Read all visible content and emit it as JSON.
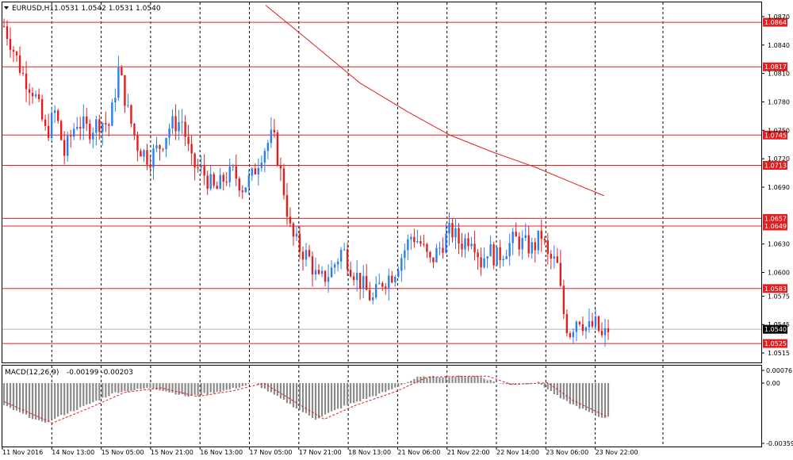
{
  "header": {
    "symbol": "EURUSD,H1",
    "ohlc": "1.0531 1.0542 1.0531 1.0540"
  },
  "macd_header": {
    "label": "MACD(12,26,9)",
    "values": "-0.00199 -0.00203"
  },
  "colors": {
    "bull": "#2a7fe8",
    "bear": "#e02020",
    "level_line": "#e02020",
    "ma_line": "#e02020",
    "grid": "#000000",
    "current_price_line": "#9fb3c8",
    "current_price_tag": "#000000",
    "macd_hist": "#8a8a8a",
    "macd_signal": "#e02020"
  },
  "chart_data": [
    {
      "type": "candlestick",
      "symbol": "EURUSD",
      "timeframe": "H1",
      "ylim": [
        1.0505,
        1.0885
      ],
      "y_tick_labels": [
        "1.0870",
        "1.0840",
        "1.0810",
        "1.0780",
        "1.0750",
        "1.0720",
        "1.0690",
        "1.0630",
        "1.0600",
        "1.0575",
        "1.0545",
        "1.0515"
      ],
      "x_tick_labels": [
        "11 Nov 2016",
        "14 Nov 13:00",
        "15 Nov 05:00",
        "15 Nov 21:00",
        "16 Nov 13:00",
        "17 Nov 05:00",
        "17 Nov 21:00",
        "18 Nov 13:00",
        "21 Nov 06:00",
        "21 Nov 22:00",
        "22 Nov 14:00",
        "23 Nov 06:00",
        "23 Nov 22:00"
      ],
      "price_levels": [
        "1.0864",
        "1.0817",
        "1.0745",
        "1.0713",
        "1.0657",
        "1.0649",
        "1.0583",
        "1.0525"
      ],
      "current_price": "1.0540",
      "moving_average": [
        {
          "x": 0.0,
          "y": 1.0882
        },
        {
          "x": 0.1,
          "y": 1.0845
        },
        {
          "x": 0.22,
          "y": 1.08
        },
        {
          "x": 0.33,
          "y": 1.077
        },
        {
          "x": 0.43,
          "y": 1.0745
        },
        {
          "x": 0.53,
          "y": 1.0727
        },
        {
          "x": 0.63,
          "y": 1.0711
        },
        {
          "x": 0.72,
          "y": 1.0694
        },
        {
          "x": 0.79,
          "y": 1.0681
        }
      ]
    },
    {
      "type": "bar",
      "indicator": "MACD(12,26,9)",
      "ylim": [
        -0.00359,
        0.00076
      ],
      "y_tick_labels": [
        "0.00076",
        "0.00",
        "-0.00359"
      ],
      "signal_line": [
        {
          "x": 0.0,
          "y": -0.0011
        },
        {
          "x": 0.08,
          "y": -0.00238
        },
        {
          "x": 0.14,
          "y": -0.0015
        },
        {
          "x": 0.2,
          "y": -0.00055
        },
        {
          "x": 0.26,
          "y": -0.00028
        },
        {
          "x": 0.32,
          "y": -0.0008
        },
        {
          "x": 0.38,
          "y": -0.00045
        },
        {
          "x": 0.43,
          "y": 0.0
        },
        {
          "x": 0.49,
          "y": -0.0013
        },
        {
          "x": 0.53,
          "y": -0.00215
        },
        {
          "x": 0.58,
          "y": -0.00135
        },
        {
          "x": 0.65,
          "y": -0.00048
        },
        {
          "x": 0.7,
          "y": 0.00035
        },
        {
          "x": 0.75,
          "y": 0.0004
        },
        {
          "x": 0.8,
          "y": 0.00042
        },
        {
          "x": 0.84,
          "y": -8e-05
        },
        {
          "x": 0.9,
          "y": 2e-05
        },
        {
          "x": 0.94,
          "y": -0.001
        },
        {
          "x": 1.0,
          "y": -0.00203
        }
      ]
    }
  ]
}
